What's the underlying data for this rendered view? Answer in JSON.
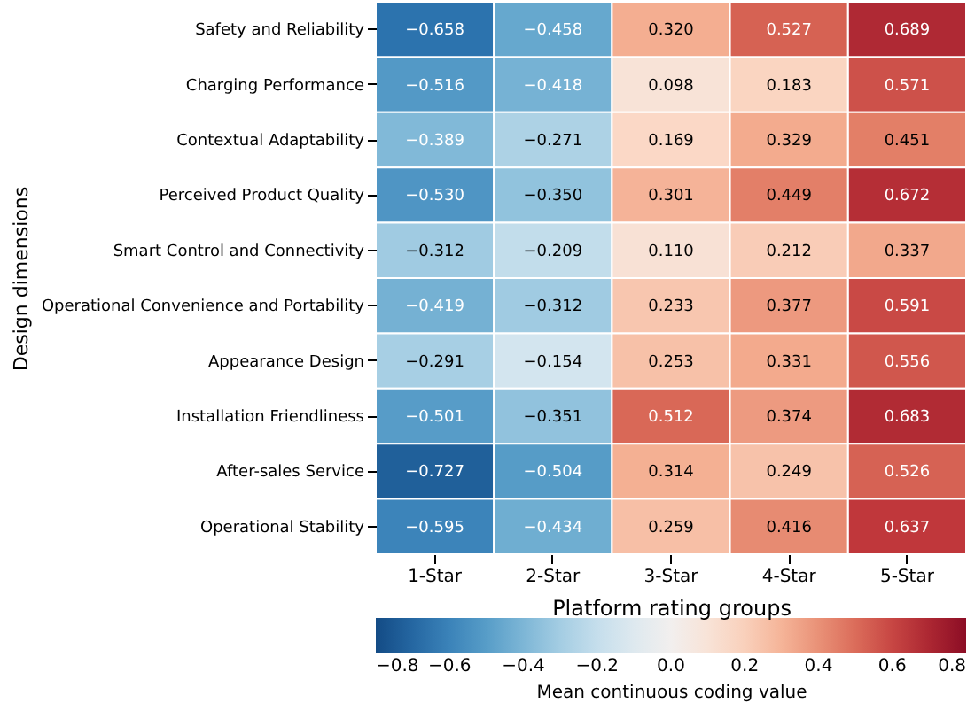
{
  "chart_data": {
    "type": "heatmap",
    "xlabel": "Platform rating groups",
    "ylabel": "Design dimensions",
    "clabel": "Mean continuous coding value",
    "categories": [
      "1-Star",
      "2-Star",
      "3-Star",
      "4-Star",
      "5-Star"
    ],
    "y_categories": [
      "Safety and Reliability",
      "Charging Performance",
      "Contextual Adaptability",
      "Perceived Product Quality",
      "Smart Control and Connectivity",
      "Operational Convenience and Portability",
      "Appearance Design",
      "Installation Friendliness",
      "After-sales Service",
      "Operational Stability"
    ],
    "cells": [
      [
        -0.658,
        -0.458,
        0.32,
        0.527,
        0.689
      ],
      [
        -0.516,
        -0.418,
        0.098,
        0.183,
        0.571
      ],
      [
        -0.389,
        -0.271,
        0.169,
        0.329,
        0.451
      ],
      [
        -0.53,
        -0.35,
        0.301,
        0.449,
        0.672
      ],
      [
        -0.312,
        -0.209,
        0.11,
        0.212,
        0.337
      ],
      [
        -0.419,
        -0.312,
        0.233,
        0.377,
        0.591
      ],
      [
        -0.291,
        -0.154,
        0.253,
        0.331,
        0.556
      ],
      [
        -0.501,
        -0.351,
        0.512,
        0.374,
        0.683
      ],
      [
        -0.727,
        -0.504,
        0.314,
        0.249,
        0.526
      ],
      [
        -0.595,
        -0.434,
        0.259,
        0.416,
        0.637
      ]
    ],
    "cell_labels": [
      [
        "−0.658",
        "−0.458",
        "0.320",
        "0.527",
        "0.689"
      ],
      [
        "−0.516",
        "−0.418",
        "0.098",
        "0.183",
        "0.571"
      ],
      [
        "−0.389",
        "−0.271",
        "0.169",
        "0.329",
        "0.451"
      ],
      [
        "−0.530",
        "−0.350",
        "0.301",
        "0.449",
        "0.672"
      ],
      [
        "−0.312",
        "−0.209",
        "0.110",
        "0.212",
        "0.337"
      ],
      [
        "−0.419",
        "−0.312",
        "0.233",
        "0.377",
        "0.591"
      ],
      [
        "−0.291",
        "−0.154",
        "0.253",
        "0.331",
        "0.556"
      ],
      [
        "−0.501",
        "−0.351",
        "0.512",
        "0.374",
        "0.683"
      ],
      [
        "−0.727",
        "−0.504",
        "0.314",
        "0.249",
        "0.526"
      ],
      [
        "−0.595",
        "−0.434",
        "0.259",
        "0.416",
        "0.637"
      ]
    ],
    "clim": [
      -0.8,
      0.8
    ],
    "cticks": [
      {
        "value": -0.8,
        "label": "−0.8"
      },
      {
        "value": -0.6,
        "label": "−0.6"
      },
      {
        "value": -0.4,
        "label": "−0.4"
      },
      {
        "value": -0.2,
        "label": "−0.2"
      },
      {
        "value": 0,
        "label": "0.0"
      },
      {
        "value": 0.2,
        "label": "0.2"
      },
      {
        "value": 0.4,
        "label": "0.4"
      },
      {
        "value": 0.6,
        "label": "0.6"
      },
      {
        "value": 0.8,
        "label": "0.8"
      }
    ]
  }
}
